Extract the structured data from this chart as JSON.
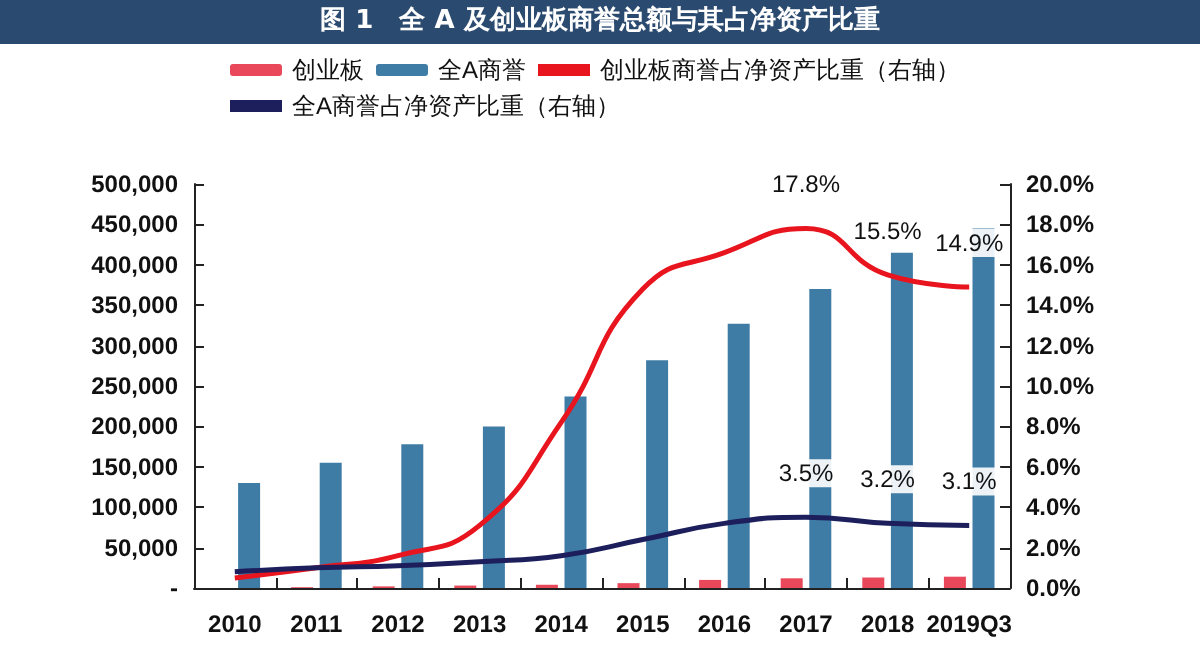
{
  "chart_data": {
    "type": "bar",
    "title": "图 1　全 A 及创业板商誉总额与其占净资产比重",
    "categories": [
      "2010",
      "2011",
      "2012",
      "2013",
      "2014",
      "2015",
      "2016",
      "2017",
      "2018",
      "2019Q3"
    ],
    "series": [
      {
        "name": "创业板",
        "color": "#e8485a",
        "values": [
          null,
          1000,
          2000,
          3000,
          4000,
          6000,
          10000,
          12000,
          13000,
          14000
        ]
      },
      {
        "name": "全A商誉",
        "color": "#3e7ca6",
        "values": [
          130000,
          155000,
          178000,
          200000,
          237000,
          282000,
          327000,
          370000,
          415000,
          445000
        ]
      },
      {
        "name": "创业板商誉占净资产比重（右轴）",
        "type": "line",
        "axis": "y2",
        "color": "#e8141e",
        "values": [
          0.5,
          1.0,
          1.6,
          3.1,
          8.2,
          14.8,
          16.6,
          17.8,
          15.5,
          14.9
        ],
        "value_labels": [
          null,
          null,
          null,
          null,
          null,
          null,
          null,
          "17.8%",
          "15.5%",
          "14.9%"
        ]
      },
      {
        "name": "全A商誉占净资产比重（右轴）",
        "type": "line",
        "axis": "y2",
        "color": "#1c1f5c",
        "values": [
          0.8,
          1.0,
          1.1,
          1.3,
          1.6,
          2.4,
          3.2,
          3.5,
          3.2,
          3.1
        ],
        "value_labels": [
          null,
          null,
          null,
          null,
          null,
          null,
          null,
          "3.5%",
          "3.2%",
          "3.1%"
        ]
      }
    ],
    "ylim": [
      0,
      500000
    ],
    "yticks": [
      {
        "value": 0,
        "label": "-"
      },
      {
        "value": 50000,
        "label": "50,000"
      },
      {
        "value": 100000,
        "label": "100,000"
      },
      {
        "value": 150000,
        "label": "150,000"
      },
      {
        "value": 200000,
        "label": "200,000"
      },
      {
        "value": 250000,
        "label": "250,000"
      },
      {
        "value": 300000,
        "label": "300,000"
      },
      {
        "value": 350000,
        "label": "350,000"
      },
      {
        "value": 400000,
        "label": "400,000"
      },
      {
        "value": 450000,
        "label": "450,000"
      },
      {
        "value": 500000,
        "label": "500,000"
      }
    ],
    "y2lim": [
      0,
      20
    ],
    "y2ticks": [
      {
        "value": 0,
        "label": "0.0%"
      },
      {
        "value": 2,
        "label": "2.0%"
      },
      {
        "value": 4,
        "label": "4.0%"
      },
      {
        "value": 6,
        "label": "6.0%"
      },
      {
        "value": 8,
        "label": "8.0%"
      },
      {
        "value": 10,
        "label": "10.0%"
      },
      {
        "value": 12,
        "label": "12.0%"
      },
      {
        "value": 14,
        "label": "14.0%"
      },
      {
        "value": 16,
        "label": "16.0%"
      },
      {
        "value": 18,
        "label": "18.0%"
      },
      {
        "value": 20,
        "label": "20.0%"
      }
    ],
    "grid": false,
    "legend": "top",
    "marker": "none",
    "line_style": "solid"
  }
}
